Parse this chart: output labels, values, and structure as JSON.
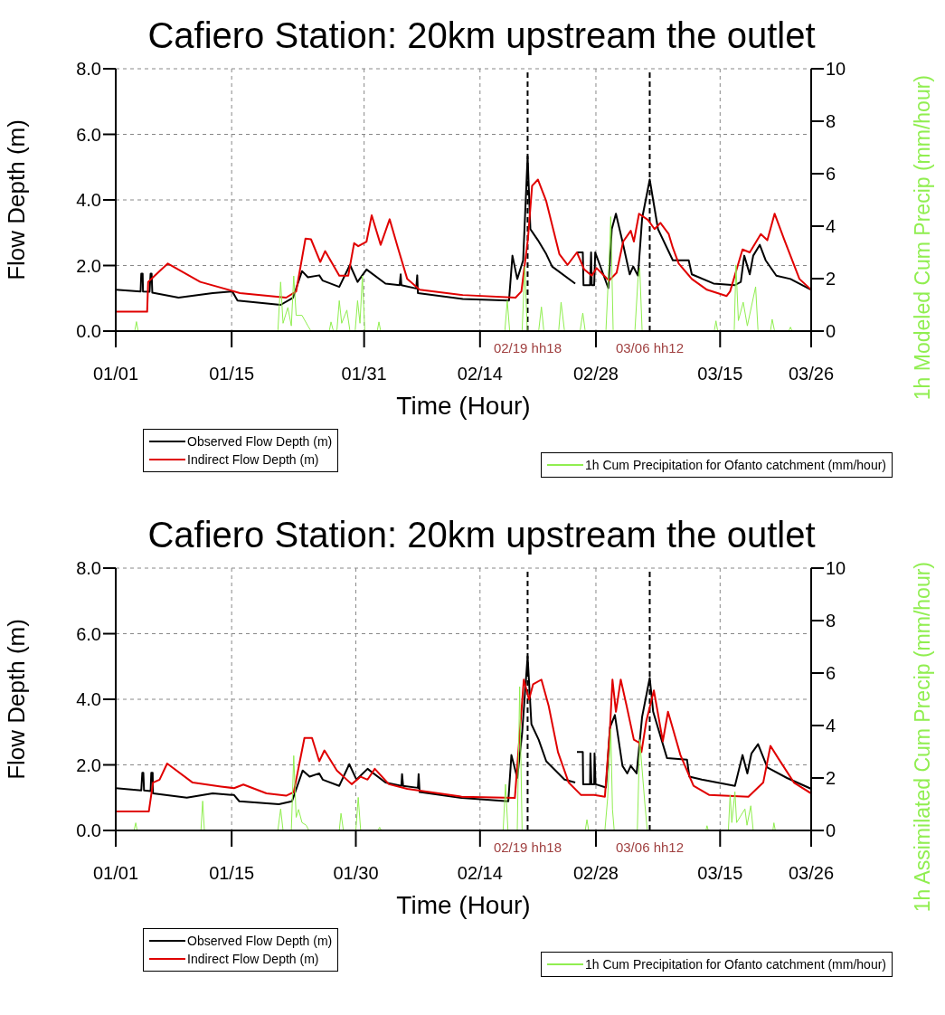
{
  "chart_data": [
    {
      "type": "line",
      "title": "Cafiero Station: 20km upstream the outlet",
      "xlabel": "Time (Hour)",
      "ylabel": "Flow Depth (m)",
      "y2label": "1h Modeled Cum Precip (mm/hour)",
      "xlim": [
        "--01-01",
        "--03-26"
      ],
      "xticks": [
        {
          "value": "--01-01",
          "label": "01/01"
        },
        {
          "value": "--01-15",
          "label": "01/15"
        },
        {
          "value": "--01-31",
          "label": "01/31"
        },
        {
          "value": "--02-14",
          "label": "02/14"
        },
        {
          "value": "--02-28",
          "label": "02/28"
        },
        {
          "value": "--03-15",
          "label": "03/15"
        },
        {
          "value": "--03-26",
          "label": "03/26"
        }
      ],
      "ylim": [
        0,
        8
      ],
      "yticks": [
        {
          "value": 0,
          "label": "0.0"
        },
        {
          "value": 2,
          "label": "2.0"
        },
        {
          "value": 4,
          "label": "4.0"
        },
        {
          "value": 6,
          "label": "6.0"
        },
        {
          "value": 8,
          "label": "8.0"
        }
      ],
      "y2lim": [
        0,
        10
      ],
      "y2ticks": [
        0,
        2,
        4,
        6,
        8,
        10
      ],
      "grid": true,
      "legend": "bottom",
      "line_style": "solid",
      "ref_lines": [
        {
          "axis": "x",
          "value": "--02-19T18:00",
          "label": "02/19 hh18",
          "color": "#000000",
          "line_style": "dashed"
        },
        {
          "axis": "x",
          "value": "--03-06T12:00",
          "label": "03/06 hh12",
          "color": "#000000",
          "line_style": "dashed"
        }
      ],
      "series": [
        {
          "name": "Observed Flow Depth (m)",
          "color": "#000000",
          "x": [
            "--01-01T00:00",
            "--01-04T00:00",
            "--01-04T02:00",
            "--01-04T06:00",
            "--01-04T07:00",
            "--01-05T02:00",
            "--01-05T05:00",
            "--01-05T08:00",
            "--01-05T10:00",
            "--01-08T14:00",
            "--01-12T17:00",
            "--01-15T02:00",
            "--01-15T17:00",
            "--01-20T22:00",
            "--01-22T10:00",
            "--01-23T12:00",
            "--01-24T05:00",
            "--01-25T14:00",
            "--01-26T00:00",
            "--01-28T00:00",
            "--01-29T07:00",
            "--01-30T05:00",
            "--01-31T07:00",
            "--02-02T14:00",
            "--02-04T07:00",
            "--02-04T10:00",
            "--02-04T12:00",
            "--02-06T07:00",
            "--02-06T10:00",
            "--02-06T12:00",
            "--02-11T22:00",
            "--02-17T12:00",
            "--02-17T22:00",
            "--02-18T12:00",
            "--02-19T05:00",
            "--02-19T18:00",
            "--02-20T02:00",
            "--02-21T00:00",
            "--02-22T00:00",
            "--02-22T17:00",
            "--02-25T12:00",
            "--02-25T14:00",
            "--02-25T17:00",
            "--02-26T10:00",
            "--02-26T12:00",
            "--02-27T07:00",
            "--02-27T10:00",
            "--02-27T12:00",
            "--02-27T19:00",
            "--02-27T22:00",
            "--03-01T12:00",
            "--03-01T22:00",
            "--03-02T10:00",
            "--03-03T05:00",
            "--03-04T02:00",
            "--03-04T12:00",
            "--03-05T02:00",
            "--03-05T14:00",
            "--03-06T12:00",
            "--03-07T12:00",
            "--03-09T07:00",
            "--03-11T05:00",
            "--03-11T14:00",
            "--03-14T05:00",
            "--03-16T19:00",
            "--03-17T12:00",
            "--03-17T22:00",
            "--03-18T14:00",
            "--03-19T00:00",
            "--03-19T19:00",
            "--03-20T12:00",
            "--03-21T19:00",
            "--03-23T12:00",
            "--03-26T00:00"
          ],
          "values": [
            1.26,
            1.21,
            1.75,
            1.75,
            1.21,
            1.2,
            1.75,
            1.75,
            1.17,
            1.02,
            1.16,
            1.21,
            0.93,
            0.8,
            1.02,
            1.83,
            1.64,
            1.7,
            1.54,
            1.35,
            2.02,
            1.5,
            1.88,
            1.45,
            1.4,
            1.73,
            1.4,
            1.3,
            1.7,
            1.16,
            0.98,
            0.93,
            2.3,
            1.59,
            2.16,
            5.33,
            3.11,
            2.77,
            2.35,
            1.97,
            1.45,
            null,
            2.4,
            2.4,
            1.4,
            1.4,
            2.4,
            1.4,
            1.4,
            2.4,
            1.31,
            3.11,
            3.58,
            2.73,
            1.73,
            1.97,
            1.69,
            3.44,
            4.62,
            3.11,
            2.16,
            2.16,
            1.73,
            1.45,
            1.4,
            1.5,
            2.3,
            1.73,
            2.3,
            2.63,
            2.16,
            1.69,
            1.59,
            1.26
          ]
        },
        {
          "name": "Indirect Flow Depth (m)",
          "color": "#e00000",
          "x": [
            "--01-01T00:00",
            "--01-04T19:00",
            "--01-04T22:00",
            "--01-05T17:00",
            "--01-07T07:00",
            "--01-11T05:00",
            "--01-16T00:00",
            "--01-21T14:00",
            "--01-22T19:00",
            "--01-23T22:00",
            "--01-24T14:00",
            "--01-25T17:00",
            "--01-26T07:00",
            "--01-28T00:00",
            "--01-29T02:00",
            "--01-29T19:00",
            "--01-30T07:00",
            "--01-31T07:00",
            "--01-31T22:00",
            "--02-02T00:00",
            "--02-03T02:00",
            "--02-04T02:00",
            "--02-05T05:00",
            "--02-06T17:00",
            "--02-11T22:00",
            "--02-18T07:00",
            "--02-19T00:00",
            "--02-19T19:00",
            "--02-20T07:00",
            "--02-21T00:00",
            "--02-22T00:00",
            "--02-23T14:00",
            "--02-24T14:00",
            "--02-25T17:00",
            "--02-26T14:00",
            "--02-27T12:00",
            "--02-28T02:00",
            "--03-01T14:00",
            "--03-02T12:00",
            "--03-03T07:00",
            "--03-04T05:00",
            "--03-04T14:00",
            "--03-05T05:00",
            "--03-06T07:00",
            "--03-07T02:00",
            "--03-07T19:00",
            "--03-08T19:00",
            "--03-09T07:00",
            "--03-10T00:00",
            "--03-11T14:00",
            "--03-13T10:00",
            "--03-15T19:00",
            "--03-16T05:00",
            "--03-17T17:00",
            "--03-18T14:00",
            "--03-19T22:00",
            "--03-20T17:00",
            "--03-21T14:00",
            "--03-22T17:00",
            "--03-24T14:00",
            "--03-26T00:00"
          ],
          "values": [
            0.59,
            0.59,
            1.5,
            1.69,
            2.06,
            1.5,
            1.16,
            1.02,
            1.21,
            2.82,
            2.8,
            2.11,
            2.44,
            1.69,
            1.69,
            2.68,
            2.59,
            2.73,
            3.53,
            2.63,
            3.41,
            2.54,
            1.59,
            1.26,
            1.1,
            1.02,
            1.21,
            2.82,
            4.43,
            4.62,
            3.96,
            2.35,
            2.02,
            2.4,
            1.88,
            1.69,
            1.92,
            1.54,
            1.78,
            2.73,
            3.06,
            2.73,
            3.58,
            3.39,
            3.11,
            3.3,
            2.96,
            2.54,
            2.06,
            1.59,
            1.26,
            1.07,
            1.21,
            2.49,
            2.4,
            2.96,
            2.77,
            3.58,
            2.82,
            1.59,
            1.26
          ]
        },
        {
          "name": "1h Cum Precipitation for Ofanto catchment (mm/hour)",
          "color": "#90ee50",
          "axis": "y2",
          "x": [
            "--01-01T00:00",
            "--01-03T07:00",
            "--01-03T12:00",
            "--01-03T17:00",
            "--01-20T14:00",
            "--01-20T22:00",
            "--01-21T05:00",
            "--01-21T19:00",
            "--01-22T05:00",
            "--01-22T12:00",
            "--01-22T19:00",
            "--01-23T12:00",
            "--01-24T05:00",
            "--01-24T14:00",
            "--01-26T19:00",
            "--01-27T00:00",
            "--01-27T07:00",
            "--01-27T17:00",
            "--01-28T00:00",
            "--01-28T07:00",
            "--01-28T22:00",
            "--01-29T07:00",
            "--01-29T22:00",
            "--01-30T05:00",
            "--01-30T12:00",
            "--01-30T19:00",
            "--01-31T02:00",
            "--02-01T14:00",
            "--02-01T19:00",
            "--02-02T00:00",
            "--02-17T00:00",
            "--02-17T07:00",
            "--02-17T14:00",
            "--02-19T02:00",
            "--02-19T10:00",
            "--02-19T17:00",
            "--02-21T02:00",
            "--02-21T10:00",
            "--02-21T17:00",
            "--02-23T12:00",
            "--02-23T19:00",
            "--02-24T05:00",
            "--02-26T02:00",
            "--02-26T10:00",
            "--02-26T17:00",
            "--03-01T05:00",
            "--03-01T14:00",
            "--03-01T19:00",
            "--03-02T02:00",
            "--03-04T17:00",
            "--03-05T02:00",
            "--03-05T07:00",
            "--03-05T14:00",
            "--03-14T07:00",
            "--03-14T12:00",
            "--03-14T17:00",
            "--03-16T17:00",
            "--03-16T22:00",
            "--03-17T05:00",
            "--03-17T19:00",
            "--03-18T07:00",
            "--03-19T07:00",
            "--03-19T14:00",
            "--03-21T02:00",
            "--03-21T07:00",
            "--03-21T14:00",
            "--03-23T07:00",
            "--03-23T12:00",
            "--03-23T17:00",
            "--03-26T00:00"
          ],
          "values": [
            0,
            0,
            0.36,
            0,
            0,
            1.87,
            0.3,
            0.9,
            0.2,
            2.1,
            0.6,
            0.6,
            0.2,
            0,
            0,
            0.35,
            0,
            0,
            1.16,
            0.3,
            0.8,
            0,
            0,
            1.16,
            0.3,
            2.1,
            0,
            0,
            0.35,
            0,
            0,
            1.16,
            0,
            0,
            2.46,
            0,
            0,
            0.92,
            0,
            0,
            1.1,
            0,
            0,
            0.69,
            0,
            0,
            2.58,
            4.36,
            0,
            0,
            1.99,
            2.4,
            0,
            0,
            0.39,
            0,
            0,
            2.52,
            0.4,
            1.1,
            0.2,
            1.69,
            0,
            0,
            0.45,
            0,
            0,
            0.15,
            0,
            0
          ]
        }
      ]
    },
    {
      "type": "line",
      "title": "Cafiero Station: 20km upstream the outlet",
      "xlabel": "Time (Hour)",
      "ylabel": "Flow Depth (m)",
      "y2label": "1h Assimilated Cum Precip (mm/hour)",
      "xlim": [
        "--01-01",
        "--03-26"
      ],
      "xticks": [
        {
          "value": "--01-01",
          "label": "01/01"
        },
        {
          "value": "--01-15",
          "label": "01/15"
        },
        {
          "value": "--01-30",
          "label": "01/30"
        },
        {
          "value": "--02-14",
          "label": "02/14"
        },
        {
          "value": "--02-28",
          "label": "02/28"
        },
        {
          "value": "--03-15",
          "label": "03/15"
        },
        {
          "value": "--03-26",
          "label": "03/26"
        }
      ],
      "ylim": [
        0,
        8
      ],
      "yticks": [
        {
          "value": 0,
          "label": "0.0"
        },
        {
          "value": 2,
          "label": "2.0"
        },
        {
          "value": 4,
          "label": "4.0"
        },
        {
          "value": 6,
          "label": "6.0"
        },
        {
          "value": 8,
          "label": "8.0"
        }
      ],
      "y2lim": [
        0,
        10
      ],
      "y2ticks": [
        0,
        2,
        4,
        6,
        8,
        10
      ],
      "grid": true,
      "legend": "bottom",
      "line_style": "solid",
      "ref_lines": [
        {
          "axis": "x",
          "value": "--02-19T18:00",
          "label": "02/19 hh18",
          "color": "#000000",
          "line_style": "dashed"
        },
        {
          "axis": "x",
          "value": "--03-06T12:00",
          "label": "03/06 hh12",
          "color": "#000000",
          "line_style": "dashed"
        }
      ],
      "series": [
        {
          "name": "Observed Flow Depth (m)",
          "color": "#000000",
          "x": [
            "--01-01T00:00",
            "--01-04T02:00",
            "--01-04T05:00",
            "--01-04T08:00",
            "--01-04T10:00",
            "--01-05T05:00",
            "--01-05T07:00",
            "--01-05T11:00",
            "--01-05T12:00",
            "--01-09T14:00",
            "--01-12T17:00",
            "--01-15T07:00",
            "--01-15T22:00",
            "--01-20T17:00",
            "--01-22T07:00",
            "--01-23T14:00",
            "--01-24T10:00",
            "--01-25T14:00",
            "--01-26T00:00",
            "--01-28T00:00",
            "--01-29T05:00",
            "--01-30T02:00",
            "--01-31T10:00",
            "--02-02T14:00",
            "--02-04T12:00",
            "--02-04T14:00",
            "--02-04T17:00",
            "--02-06T12:00",
            "--02-06T14:00",
            "--02-06T17:00",
            "--02-11T19:00",
            "--02-17T10:00",
            "--02-17T19:00",
            "--02-18T12:00",
            "--02-19T02:00",
            "--02-19T18:00",
            "--02-20T05:00",
            "--02-21T02:00",
            "--02-22T00:00",
            "--02-24T05:00",
            "--02-25T12:00",
            "--02-25T14:00",
            "--02-25T17:00",
            "--02-26T10:00",
            "--02-26T11:00",
            "--02-27T07:00",
            "--02-27T08:00",
            "--02-27T11:00",
            "--02-27T19:00",
            "--02-27T20:00",
            "--02-27T23:00",
            "--03-01T05:00",
            "--03-01T17:00",
            "--03-02T07:00",
            "--03-03T05:00",
            "--03-03T19:00",
            "--03-04T05:00",
            "--03-04T22:00",
            "--03-05T14:00",
            "--03-06T12:00",
            "--03-06T22:00",
            "--03-08T14:00",
            "--03-11T00:00",
            "--03-11T07:00",
            "--03-12T19:00",
            "--03-16T19:00",
            "--03-17T17:00",
            "--03-18T07:00",
            "--03-18T19:00",
            "--03-19T14:00",
            "--03-20T17:00",
            "--03-23T02:00",
            "--03-26T00:00"
          ],
          "values": [
            1.29,
            1.22,
            1.76,
            1.76,
            1.22,
            1.2,
            1.76,
            1.76,
            1.13,
            1.0,
            1.13,
            1.08,
            0.89,
            0.8,
            0.89,
            1.83,
            1.64,
            1.74,
            1.55,
            1.36,
            2.02,
            1.55,
            1.88,
            1.46,
            1.36,
            1.72,
            1.36,
            1.3,
            1.72,
            1.17,
            0.99,
            0.89,
            2.3,
            1.6,
            2.96,
            5.31,
            3.24,
            2.77,
            2.11,
            1.55,
            1.46,
            null,
            2.39,
            2.39,
            1.41,
            1.41,
            2.35,
            1.41,
            1.41,
            2.35,
            1.41,
            1.31,
            3.15,
            3.52,
            1.97,
            1.74,
            1.97,
            1.74,
            3.47,
            4.65,
            3.62,
            2.21,
            2.16,
            1.64,
            1.55,
            1.36,
            2.3,
            1.74,
            2.35,
            2.63,
            1.92,
            1.6,
            1.27
          ]
        },
        {
          "name": "Indirect Flow Depth (m)",
          "color": "#e00000",
          "x": [
            "--01-01T00:00",
            "--01-05T00:00",
            "--01-05T12:00",
            "--01-06T07:00",
            "--01-07T05:00",
            "--01-10T07:00",
            "--01-13T17:00",
            "--01-15T07:00",
            "--01-16T10:00",
            "--01-19T05:00",
            "--01-21T14:00",
            "--01-22T12:00",
            "--01-23T19:00",
            "--01-24T17:00",
            "--01-25T14:00",
            "--01-26T05:00",
            "--01-27T17:00",
            "--01-29T12:00",
            "--01-30T14:00",
            "--01-31T10:00",
            "--02-01T07:00",
            "--02-03T00:00",
            "--02-05T05:00",
            "--02-11T19:00",
            "--02-18T05:00",
            "--02-19T07:00",
            "--02-19T22:00",
            "--02-20T10:00",
            "--02-21T10:00",
            "--02-22T07:00",
            "--02-23T10:00",
            "--02-24T17:00",
            "--02-26T05:00",
            "--02-27T19:00",
            "--03-01T02:00",
            "--03-01T17:00",
            "--03-02T00:00",
            "--03-02T10:00",
            "--03-03T00:00",
            "--03-03T17:00",
            "--03-04T14:00",
            "--03-05T05:00",
            "--03-05T12:00",
            "--03-06T02:00",
            "--03-07T00:00",
            "--03-08T02:00",
            "--03-08T17:00",
            "--03-10T05:00",
            "--03-11T19:00",
            "--03-13T17:00",
            "--03-18T10:00",
            "--03-20T05:00",
            "--03-21T02:00",
            "--03-22T00:00",
            "--03-23T22:00",
            "--03-26T00:00"
          ],
          "values": [
            0.58,
            0.58,
            1.46,
            1.55,
            2.04,
            1.46,
            1.34,
            1.29,
            1.4,
            1.13,
            1.06,
            1.17,
            2.82,
            2.82,
            2.11,
            2.44,
            1.83,
            1.41,
            1.64,
            1.55,
            1.88,
            1.41,
            1.27,
            1.03,
            0.99,
            4.6,
            3.99,
            4.46,
            4.6,
            3.8,
            2.39,
            1.46,
            1.08,
            1.08,
            1.03,
            3.15,
            4.6,
            3.62,
            4.6,
            3.8,
            2.77,
            2.68,
            2.39,
            3.33,
            4.27,
            2.72,
            3.62,
            2.3,
            1.36,
            1.08,
            1.03,
            1.46,
            2.58,
            2.21,
            1.46,
            1.13
          ]
        },
        {
          "name": "1h Cum Precipitation for Ofanto catchment (mm/hour)",
          "color": "#90ee50",
          "axis": "y2",
          "x": [
            "--01-01T00:00",
            "--01-03T05:00",
            "--01-03T10:00",
            "--01-03T14:00",
            "--01-11T07:00",
            "--01-11T12:00",
            "--01-11T17:00",
            "--01-20T14:00",
            "--01-20T22:00",
            "--01-21T05:00",
            "--01-22T05:00",
            "--01-22T12:00",
            "--01-22T19:00",
            "--01-23T02:00",
            "--01-23T12:00",
            "--01-24T00:00",
            "--01-24T08:00",
            "--01-28T00:00",
            "--01-28T05:00",
            "--01-28T12:00",
            "--01-30T00:00",
            "--01-30T07:00",
            "--01-30T14:00",
            "--02-01T16:00",
            "--02-01T21:00",
            "--02-02T02:00",
            "--02-16T19:00",
            "--02-17T02:00",
            "--02-17T09:00",
            "--02-18T12:00",
            "--02-18T19:00",
            "--02-19T02:00",
            "--02-26T17:00",
            "--02-26T22:00",
            "--02-27T03:00",
            "--03-01T02:00",
            "--03-01T10:00",
            "--03-01T19:00",
            "--03-02T00:00",
            "--03-02T05:00",
            "--03-05T00:00",
            "--03-05T07:00",
            "--03-05T22:00",
            "--03-06T05:00",
            "--03-13T07:00",
            "--03-13T10:00",
            "--03-13T14:00",
            "--03-16T00:00",
            "--03-16T05:00",
            "--03-16T10:00",
            "--03-16T19:00",
            "--03-17T00:00",
            "--03-18T00:00",
            "--03-18T06:00",
            "--03-18T17:00",
            "--03-19T00:00",
            "--03-21T09:00",
            "--03-21T12:00",
            "--03-21T16:00",
            "--03-26T00:00"
          ],
          "values": [
            0,
            0,
            0.29,
            0,
            0,
            1.12,
            0,
            0,
            0.82,
            0,
            0,
            2.85,
            0.5,
            0.8,
            0.3,
            0.2,
            0,
            0,
            0.65,
            0,
            0,
            1.26,
            0,
            0,
            0.12,
            0,
            0,
            1.76,
            0,
            0,
            5.48,
            0,
            0,
            0.41,
            0,
            0,
            1.23,
            3.87,
            0.8,
            0,
            0,
            3.46,
            1.0,
            0,
            0,
            0.18,
            0,
            0,
            1.35,
            0.3,
            1.47,
            0.3,
            0.82,
            0.2,
            0.94,
            0,
            0,
            0.29,
            0,
            0
          ]
        }
      ]
    }
  ]
}
